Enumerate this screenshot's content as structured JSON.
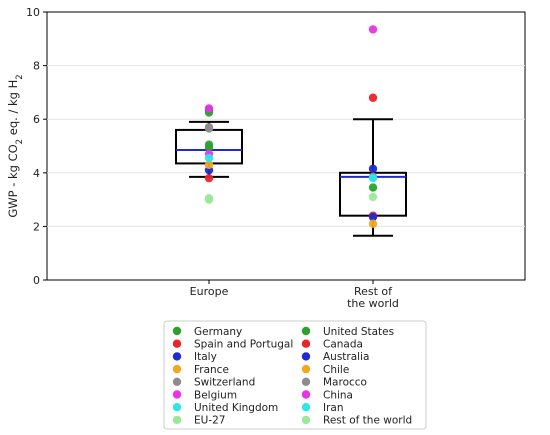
{
  "chart_data": {
    "type": "box",
    "title": "",
    "xlabel": "",
    "ylabel_parts": [
      "GWP - kg CO",
      "2",
      " eq. / kg H",
      "2"
    ],
    "ylim": [
      0,
      10
    ],
    "yticks": [
      "0",
      "2",
      "4",
      "6",
      "8",
      "10"
    ],
    "grid": "horizontal",
    "legend_placement": "bottom",
    "categories": [
      {
        "name": "Europe",
        "label_lines": [
          "Europe"
        ],
        "box": {
          "whisker_low": 3.85,
          "q1": 4.35,
          "median": 4.85,
          "q3": 5.6,
          "whisker_high": 5.9
        }
      },
      {
        "name": "Rest of the world",
        "label_lines": [
          "Rest of",
          "the world"
        ],
        "box": {
          "whisker_low": 1.65,
          "q1": 2.4,
          "median": 3.85,
          "q3": 4.0,
          "whisker_high": 6.0
        }
      }
    ],
    "series": [
      {
        "name": "Germany",
        "color": "#2ca02c",
        "category": "Europe",
        "value": 6.25
      },
      {
        "name": "Spain and Portugal",
        "color": "#e8262a",
        "category": "Europe",
        "value": 3.8
      },
      {
        "name": "Italy",
        "color": "#1f2ad4",
        "category": "Europe",
        "value": 4.1
      },
      {
        "name": "France",
        "color": "#f2a71f",
        "category": "Europe",
        "value": 4.3
      },
      {
        "name": "Switzerland",
        "color": "#8c8c8c",
        "category": "Europe",
        "value": 5.65
      },
      {
        "name": "Belgium",
        "color": "#e535e5",
        "category": "Europe",
        "value": 6.4
      },
      {
        "name": "United Kingdom",
        "color": "#2de6e6",
        "category": "Europe",
        "value": 4.55
      },
      {
        "name": "EU-27",
        "color": "#9be89b",
        "category": "Europe",
        "value": 3.05
      },
      {
        "name": "United States",
        "color": "#2ca02c",
        "category": "Rest of the world",
        "value": 3.45
      },
      {
        "name": "Canada",
        "color": "#e8262a",
        "category": "Rest of the world",
        "value": 6.8
      },
      {
        "name": "Australia",
        "color": "#1f2ad4",
        "category": "Rest of the world",
        "value": 4.15
      },
      {
        "name": "Chile",
        "color": "#f2a71f",
        "category": "Rest of the world",
        "value": 2.1
      },
      {
        "name": "Marocco",
        "color": "#8c8c8c",
        "category": "Rest of the world",
        "value": 3.85
      },
      {
        "name": "China",
        "color": "#e535e5",
        "category": "Rest of the world",
        "value": 9.35
      },
      {
        "name": "Iran",
        "color": "#2de6e6",
        "category": "Rest of the world",
        "value": 3.8
      },
      {
        "name": "Rest of the world",
        "color": "#9be89b",
        "category": "Rest of the world",
        "value": 3.1
      }
    ],
    "extra_points": [
      {
        "category": "Europe",
        "color": "#2ca02c",
        "value": 5.05
      },
      {
        "category": "Europe",
        "color": "#2ca02c",
        "value": 4.95
      },
      {
        "category": "Europe",
        "color": "#e535e5",
        "category2": "",
        "value": 4.7
      },
      {
        "category": "Europe",
        "color": "#1f2ad4",
        "value": 6.35
      },
      {
        "category": "Europe",
        "color": "#8c8c8c",
        "value": 5.7
      },
      {
        "category": "Europe",
        "color": "#9be89b",
        "value": 3.0
      },
      {
        "category": "Rest of the world",
        "color": "#e8262a",
        "value": 2.4
      },
      {
        "category": "Rest of the world",
        "color": "#1f2ad4",
        "value": 2.35
      }
    ],
    "box_color": "#000000",
    "median_color": "#1f2ad4"
  }
}
